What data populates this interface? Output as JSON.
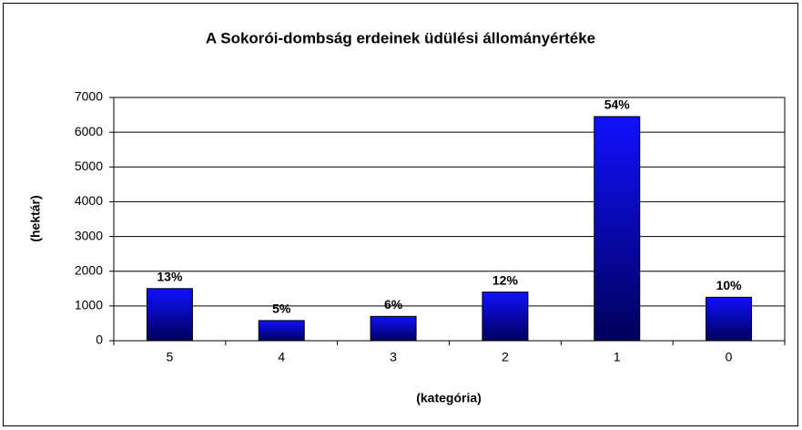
{
  "chart_data": {
    "type": "bar",
    "title": "A Sokorói-dombság erdeinek üdülési állományértéke",
    "xlabel": "(kategória)",
    "ylabel": "(hektár)",
    "categories": [
      "5",
      "4",
      "3",
      "2",
      "1",
      "0"
    ],
    "values": [
      1500,
      580,
      700,
      1400,
      6450,
      1250
    ],
    "percent_labels": [
      "13%",
      "5%",
      "6%",
      "12%",
      "54%",
      "10%"
    ],
    "gradient": [
      "#1010ff",
      "#00005a"
    ],
    "ylim": [
      0,
      7000
    ],
    "yticks": [
      0,
      1000,
      2000,
      3000,
      4000,
      5000,
      6000,
      7000
    ],
    "grid": true
  }
}
